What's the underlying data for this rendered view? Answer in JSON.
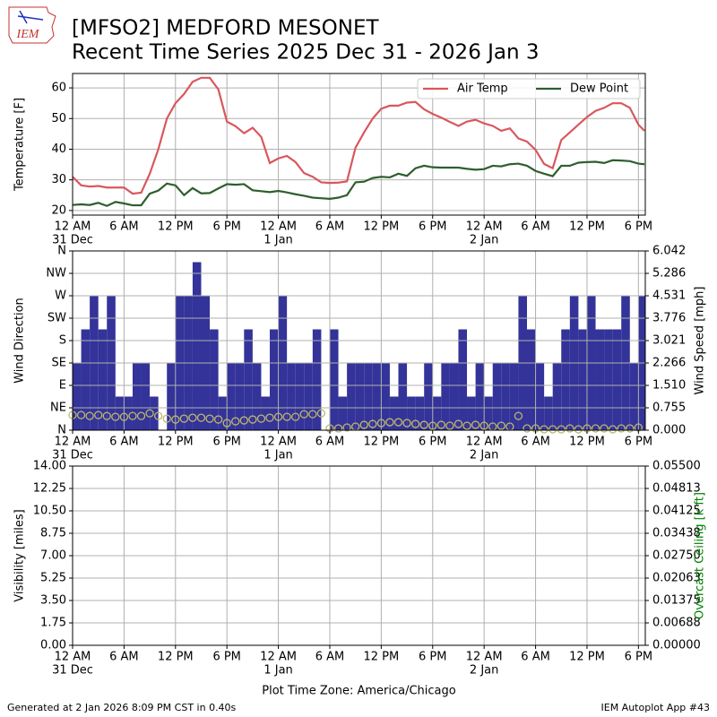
{
  "header": {
    "logo_text": "IEM",
    "title": "[MFSO2] MEDFORD MESONET",
    "subtitle": "Recent Time Series 2025 Dec 31 - 2026 Jan 3"
  },
  "footer": {
    "left": "Generated at 2 Jan 2026 8:09 PM CST in 0.40s",
    "right": "IEM Autoplot App #43"
  },
  "chart_data": [
    {
      "type": "line",
      "ylabel": "Temperature [F]",
      "x": [
        0,
        1,
        2,
        3,
        4,
        5,
        6,
        7,
        8,
        9,
        10,
        11,
        12,
        13,
        14,
        15,
        16,
        17,
        18,
        19,
        20,
        21,
        22,
        23,
        24,
        25,
        26,
        27,
        28,
        29,
        30,
        31,
        32,
        33,
        34,
        35,
        36,
        37,
        38,
        39,
        40,
        41,
        42,
        43,
        44,
        45,
        46,
        47,
        48,
        49,
        50,
        51,
        52,
        53,
        54,
        55,
        56,
        57,
        58,
        59,
        60,
        61,
        62,
        63,
        64,
        65,
        66,
        66.7
      ],
      "series": [
        {
          "name": "Air Temp",
          "color": "#d9575d",
          "values": [
            31,
            28.2,
            27.8,
            28,
            27.5,
            27.5,
            27.5,
            25.5,
            25.8,
            32,
            40,
            50,
            55,
            58,
            62,
            63.3,
            63.3,
            59.5,
            49,
            47.5,
            45.2,
            47,
            44,
            35.5,
            37,
            37.8,
            35.8,
            32.2,
            31,
            29.2,
            29,
            29.1,
            29.5,
            40.5,
            45.5,
            50,
            53.2,
            54.2,
            54.2,
            55.2,
            55.4,
            53,
            51.5,
            50.3,
            48.9,
            47.6,
            49,
            49.6,
            48.4,
            47.6,
            46,
            46.8,
            43.5,
            42.5,
            39.8,
            35.2,
            33.8,
            43,
            45.5,
            48,
            50.5,
            52.5,
            53.5,
            55,
            55,
            53.5,
            48,
            46
          ]
        },
        {
          "name": "Dew Point",
          "color": "#2e5e2e",
          "values": [
            21.8,
            22,
            21.8,
            22.5,
            21.5,
            22.8,
            22.3,
            21.7,
            21.7,
            25.5,
            26.5,
            28.8,
            28.2,
            25,
            27.3,
            25.6,
            25.7,
            27.2,
            28.6,
            28.4,
            28.6,
            26.6,
            26.3,
            26,
            26.4,
            25.9,
            25.3,
            24.8,
            24.2,
            24,
            23.8,
            24.2,
            25,
            29.2,
            29.4,
            30.6,
            31,
            30.8,
            32,
            31.3,
            33.8,
            34.6,
            34.1,
            34,
            34,
            34,
            33.6,
            33.3,
            33.5,
            34.6,
            34.4,
            35.1,
            35.3,
            34.6,
            32.9,
            32,
            31.2,
            34.6,
            34.6,
            35.6,
            35.8,
            35.9,
            35.5,
            36.4,
            36.3,
            36.1,
            35.3,
            35.1
          ]
        }
      ],
      "xlim": [
        0,
        66.8
      ],
      "xticks": [
        {
          "value": 0,
          "label": "12 AM"
        },
        {
          "value": 6,
          "label": "6 AM"
        },
        {
          "value": 12,
          "label": "12 PM"
        },
        {
          "value": 18,
          "label": "6 PM"
        },
        {
          "value": 24,
          "label": "12 AM"
        },
        {
          "value": 30,
          "label": "6 AM"
        },
        {
          "value": 36,
          "label": "12 PM"
        },
        {
          "value": 42,
          "label": "6 PM"
        },
        {
          "value": 48,
          "label": "12 AM"
        },
        {
          "value": 54,
          "label": "6 AM"
        },
        {
          "value": 60,
          "label": "12 PM"
        },
        {
          "value": 66,
          "label": "6 PM"
        }
      ],
      "date_labels": [
        {
          "value": 0,
          "label": "31 Dec"
        },
        {
          "value": 24,
          "label": "1 Jan"
        },
        {
          "value": 48,
          "label": "2 Jan"
        }
      ],
      "ylim": [
        18.5,
        64.7
      ],
      "yticks": [
        20,
        30,
        40,
        50,
        60
      ],
      "grid": true,
      "legend": "upper right"
    },
    {
      "type": "bar",
      "ylabel": "Wind Direction",
      "y2label": "Wind Speed [mph]",
      "x": [
        0,
        1,
        2,
        3,
        4,
        5,
        6,
        7,
        8,
        9,
        10,
        11,
        12,
        13,
        14,
        15,
        16,
        17,
        18,
        19,
        20,
        21,
        22,
        23,
        24,
        25,
        26,
        27,
        28,
        29,
        30,
        31,
        32,
        33,
        34,
        35,
        36,
        37,
        38,
        39,
        40,
        41,
        42,
        43,
        44,
        45,
        46,
        47,
        48,
        49,
        50,
        51,
        52,
        53,
        54,
        55,
        56,
        57,
        58,
        59,
        60,
        61,
        62,
        63,
        64,
        65,
        66
      ],
      "series": [
        {
          "color": "#333399",
          "values": [
            135,
            202.5,
            270,
            202.5,
            270,
            67.5,
            67.5,
            135,
            135,
            67.5,
            0,
            135,
            270,
            270,
            337.5,
            270,
            202.5,
            67.5,
            135,
            135,
            202.5,
            135,
            67.5,
            202.5,
            270,
            135,
            135,
            135,
            202.5,
            0,
            202.5,
            67.5,
            135,
            135,
            135,
            135,
            135,
            67.5,
            135,
            67.5,
            67.5,
            135,
            67.5,
            135,
            135,
            202.5,
            67.5,
            135,
            67.5,
            135,
            135,
            135,
            270,
            202.5,
            135,
            67.5,
            135,
            202.5,
            270,
            202.5,
            270,
            202.5,
            202.5,
            202.5,
            270,
            135,
            270
          ]
        },
        {
          "type": "scatter",
          "axis": "y2",
          "color": "#bdb76b",
          "values": [
            0.51,
            0.51,
            0.48,
            0.51,
            0.48,
            0.45,
            0.45,
            0.48,
            0.48,
            0.57,
            0.48,
            0.39,
            0.36,
            0.39,
            0.42,
            0.42,
            0.39,
            0.36,
            0.24,
            0.3,
            0.33,
            0.36,
            0.39,
            0.42,
            0.45,
            0.45,
            0.45,
            0.54,
            0.54,
            0.57,
            0.06,
            0.06,
            0.09,
            0.12,
            0.18,
            0.21,
            0.24,
            0.27,
            0.27,
            0.24,
            0.21,
            0.18,
            0.15,
            0.18,
            0.15,
            0.21,
            0.15,
            0.18,
            0.15,
            0.12,
            0.15,
            0.12,
            0.48,
            0.06,
            0.06,
            0.03,
            0.03,
            0.03,
            0.06,
            0.03,
            0.06,
            0.06,
            0.06,
            0.03,
            0.06,
            0.06,
            0.09
          ]
        }
      ],
      "xlim": [
        0,
        66.8
      ],
      "xticks": [
        {
          "value": 0,
          "label": "12 AM"
        },
        {
          "value": 6,
          "label": "6 AM"
        },
        {
          "value": 12,
          "label": "12 PM"
        },
        {
          "value": 18,
          "label": "6 PM"
        },
        {
          "value": 24,
          "label": "12 AM"
        },
        {
          "value": 30,
          "label": "6 AM"
        },
        {
          "value": 36,
          "label": "12 PM"
        },
        {
          "value": 42,
          "label": "6 PM"
        },
        {
          "value": 48,
          "label": "12 AM"
        },
        {
          "value": 54,
          "label": "6 AM"
        },
        {
          "value": 60,
          "label": "12 PM"
        },
        {
          "value": 66,
          "label": "6 PM"
        }
      ],
      "date_labels": [
        {
          "value": 0,
          "label": "31 Dec"
        },
        {
          "value": 24,
          "label": "1 Jan"
        },
        {
          "value": 48,
          "label": "2 Jan"
        }
      ],
      "ylim": [
        0,
        360
      ],
      "yticks": [
        {
          "value": 0,
          "label": "N"
        },
        {
          "value": 45,
          "label": "NE"
        },
        {
          "value": 90,
          "label": "E"
        },
        {
          "value": 135,
          "label": "SE"
        },
        {
          "value": 180,
          "label": "S"
        },
        {
          "value": 225,
          "label": "SW"
        },
        {
          "value": 270,
          "label": "W"
        },
        {
          "value": 315,
          "label": "NW"
        },
        {
          "value": 360,
          "label": "N"
        }
      ],
      "y2lim": [
        0,
        6.042
      ],
      "y2ticks": [
        {
          "value": 0,
          "label": "0.000"
        },
        {
          "value": 0.755,
          "label": "0.755"
        },
        {
          "value": 1.51,
          "label": "1.510"
        },
        {
          "value": 2.266,
          "label": "2.266"
        },
        {
          "value": 3.021,
          "label": "3.021"
        },
        {
          "value": 3.776,
          "label": "3.776"
        },
        {
          "value": 4.531,
          "label": "4.531"
        },
        {
          "value": 5.286,
          "label": "5.286"
        },
        {
          "value": 6.042,
          "label": "6.042"
        }
      ],
      "grid": true
    },
    {
      "type": "line",
      "ylabel": "Visibility [miles]",
      "y2label": "Overcast Ceiling [k ft]",
      "y2label_color": "#008000",
      "xlabel": "Plot Time Zone: America/Chicago",
      "series": [],
      "xlim": [
        0,
        66.8
      ],
      "xticks": [
        {
          "value": 0,
          "label": "12 AM"
        },
        {
          "value": 6,
          "label": "6 AM"
        },
        {
          "value": 12,
          "label": "12 PM"
        },
        {
          "value": 18,
          "label": "6 PM"
        },
        {
          "value": 24,
          "label": "12 AM"
        },
        {
          "value": 30,
          "label": "6 AM"
        },
        {
          "value": 36,
          "label": "12 PM"
        },
        {
          "value": 42,
          "label": "6 PM"
        },
        {
          "value": 48,
          "label": "12 AM"
        },
        {
          "value": 54,
          "label": "6 AM"
        },
        {
          "value": 60,
          "label": "12 PM"
        },
        {
          "value": 66,
          "label": "6 PM"
        }
      ],
      "date_labels": [
        {
          "value": 0,
          "label": "31 Dec"
        },
        {
          "value": 24,
          "label": "1 Jan"
        },
        {
          "value": 48,
          "label": "2 Jan"
        }
      ],
      "ylim": [
        0,
        14
      ],
      "yticks": [
        {
          "value": 0,
          "label": "0.00"
        },
        {
          "value": 1.75,
          "label": "1.75"
        },
        {
          "value": 3.5,
          "label": "3.50"
        },
        {
          "value": 5.25,
          "label": "5.25"
        },
        {
          "value": 7,
          "label": "7.00"
        },
        {
          "value": 8.75,
          "label": "8.75"
        },
        {
          "value": 10.5,
          "label": "10.50"
        },
        {
          "value": 12.25,
          "label": "12.25"
        },
        {
          "value": 14,
          "label": "14.00"
        }
      ],
      "y2lim": [
        0,
        0.055
      ],
      "y2ticks": [
        {
          "value": 0,
          "label": "0.00000"
        },
        {
          "value": 0.006875,
          "label": "0.00688"
        },
        {
          "value": 0.01375,
          "label": "0.01375"
        },
        {
          "value": 0.020625,
          "label": "0.02063"
        },
        {
          "value": 0.0275,
          "label": "0.02750"
        },
        {
          "value": 0.034375,
          "label": "0.03438"
        },
        {
          "value": 0.04125,
          "label": "0.04125"
        },
        {
          "value": 0.048125,
          "label": "0.04813"
        },
        {
          "value": 0.055,
          "label": "0.05500"
        }
      ],
      "grid": true
    }
  ]
}
